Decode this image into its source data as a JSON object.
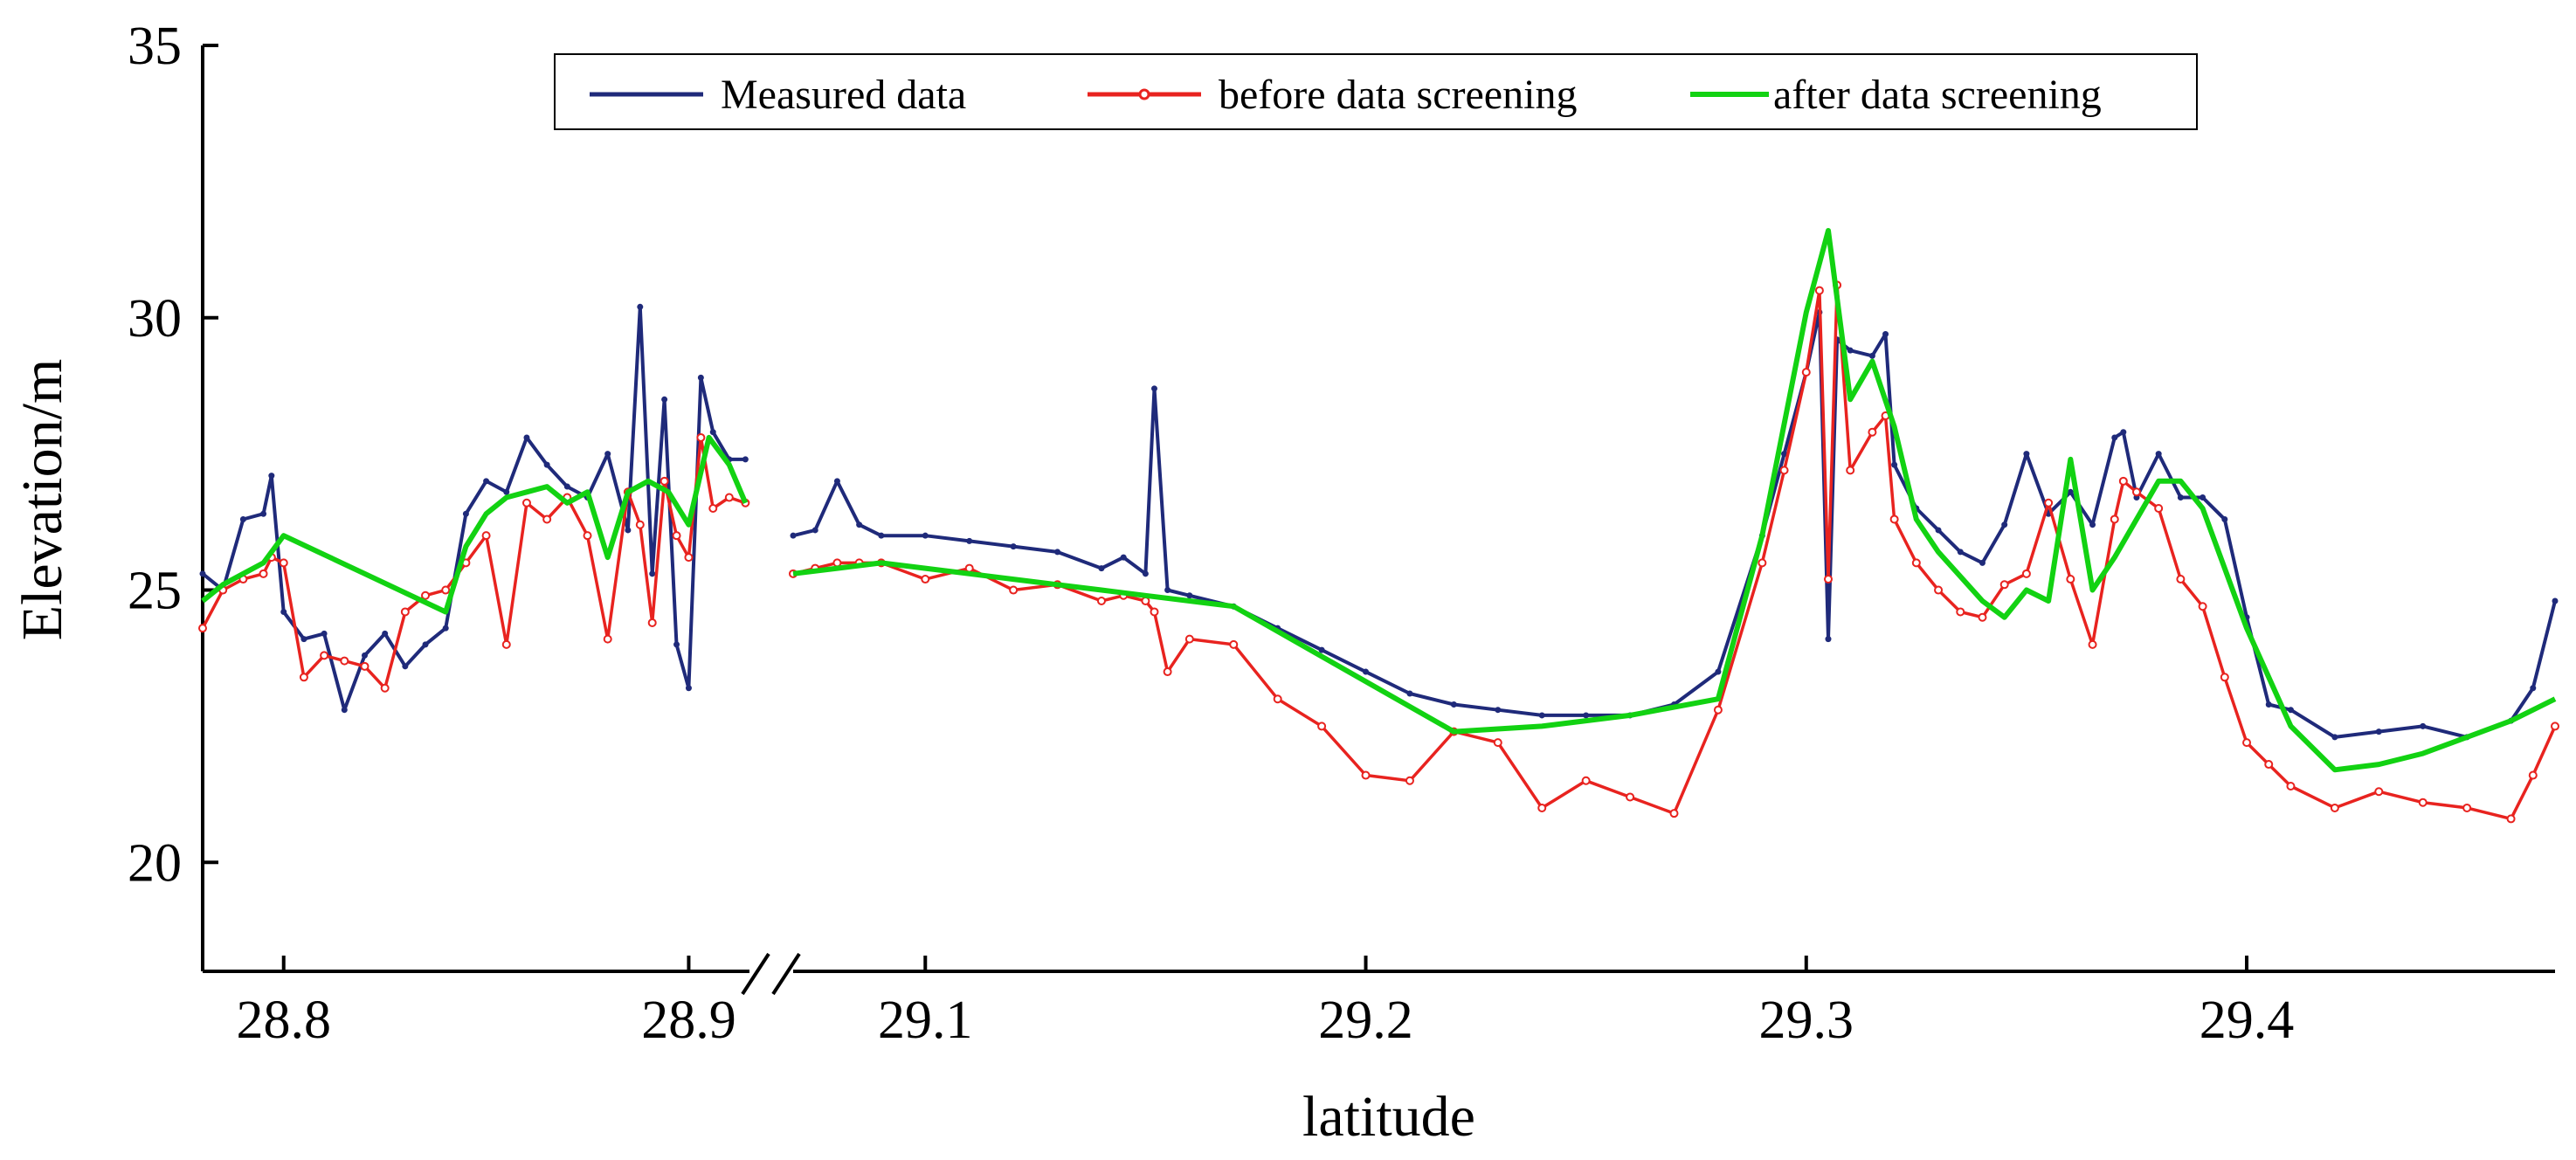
{
  "chart_data": {
    "type": "line",
    "xlabel": "latitude",
    "ylabel": "Elevation/m",
    "ylim": [
      18,
      35
    ],
    "yticks": [
      20,
      25,
      30,
      35
    ],
    "axis_break": "between 28.9 and 29.1",
    "segments": [
      {
        "xlim": [
          28.78,
          28.915
        ],
        "ticks": [
          28.8,
          28.9
        ]
      },
      {
        "xlim": [
          29.07,
          29.47
        ],
        "ticks": [
          29.1,
          29.2,
          29.3,
          29.4
        ]
      }
    ],
    "xtick_labels": [
      "28.8",
      "28.9",
      "29.1",
      "29.2",
      "29.3",
      "29.4"
    ],
    "legend": [
      "Measured data",
      "before data screening",
      "after data screening"
    ],
    "legend_position": "top-right",
    "colors": {
      "measured": "#1f2a7a",
      "before": "#e8231f",
      "after": "#12d212"
    },
    "series": [
      {
        "name": "Measured data",
        "color": "#1f2a7a",
        "x": [
          28.78,
          28.785,
          28.79,
          28.795,
          28.797,
          28.8,
          28.805,
          28.81,
          28.815,
          28.82,
          28.825,
          28.83,
          28.835,
          28.84,
          28.845,
          28.85,
          28.855,
          28.86,
          28.865,
          28.87,
          28.875,
          28.88,
          28.885,
          28.888,
          28.891,
          28.894,
          28.897,
          28.9,
          28.903,
          28.906,
          28.91,
          28.914,
          29.07,
          29.075,
          29.08,
          29.085,
          29.09,
          29.1,
          29.11,
          29.12,
          29.13,
          29.14,
          29.145,
          29.15,
          29.152,
          29.155,
          29.16,
          29.17,
          29.18,
          29.19,
          29.2,
          29.21,
          29.22,
          29.23,
          29.24,
          29.25,
          29.26,
          29.27,
          29.28,
          29.29,
          29.295,
          29.3,
          29.303,
          29.305,
          29.307,
          29.31,
          29.315,
          29.318,
          29.32,
          29.325,
          29.33,
          29.335,
          29.34,
          29.345,
          29.35,
          29.355,
          29.36,
          29.365,
          29.37,
          29.372,
          29.375,
          29.38,
          29.385,
          29.39,
          29.395,
          29.4,
          29.405,
          29.41,
          29.42,
          29.43,
          29.44,
          29.45,
          29.46,
          29.465,
          29.47
        ],
        "y": [
          25.3,
          25.0,
          26.3,
          26.4,
          27.1,
          24.6,
          24.1,
          24.2,
          22.8,
          23.8,
          24.2,
          23.6,
          24.0,
          24.3,
          26.4,
          27.0,
          26.8,
          27.8,
          27.3,
          26.9,
          26.7,
          27.5,
          26.1,
          30.2,
          25.3,
          28.5,
          24.0,
          23.2,
          28.9,
          27.9,
          27.4,
          27.4,
          26.0,
          26.1,
          27.0,
          26.2,
          26.0,
          26.0,
          25.9,
          25.8,
          25.7,
          25.4,
          25.6,
          25.3,
          28.7,
          25.0,
          24.9,
          24.7,
          24.3,
          23.9,
          23.5,
          23.1,
          22.9,
          22.8,
          22.7,
          22.7,
          22.7,
          22.9,
          23.5,
          26.0,
          27.5,
          29.0,
          30.1,
          24.1,
          29.6,
          29.4,
          29.3,
          29.7,
          27.3,
          26.5,
          26.1,
          25.7,
          25.5,
          26.2,
          27.5,
          26.4,
          26.8,
          26.2,
          27.8,
          27.9,
          26.7,
          27.5,
          26.7,
          26.7,
          26.3,
          24.5,
          22.9,
          22.8,
          22.3,
          22.4,
          22.5,
          22.3,
          22.6,
          23.2,
          24.8
        ]
      },
      {
        "name": "before data screening",
        "color": "#e8231f",
        "x": [
          28.78,
          28.785,
          28.79,
          28.795,
          28.797,
          28.8,
          28.805,
          28.81,
          28.815,
          28.82,
          28.825,
          28.83,
          28.835,
          28.84,
          28.845,
          28.85,
          28.855,
          28.86,
          28.865,
          28.87,
          28.875,
          28.88,
          28.885,
          28.888,
          28.891,
          28.894,
          28.897,
          28.9,
          28.903,
          28.906,
          28.91,
          28.914,
          29.07,
          29.075,
          29.08,
          29.085,
          29.09,
          29.1,
          29.11,
          29.12,
          29.13,
          29.14,
          29.145,
          29.15,
          29.152,
          29.155,
          29.16,
          29.17,
          29.18,
          29.19,
          29.2,
          29.21,
          29.22,
          29.23,
          29.24,
          29.25,
          29.26,
          29.27,
          29.28,
          29.29,
          29.295,
          29.3,
          29.303,
          29.305,
          29.307,
          29.31,
          29.315,
          29.318,
          29.32,
          29.325,
          29.33,
          29.335,
          29.34,
          29.345,
          29.35,
          29.355,
          29.36,
          29.365,
          29.37,
          29.372,
          29.375,
          29.38,
          29.385,
          29.39,
          29.395,
          29.4,
          29.405,
          29.41,
          29.42,
          29.43,
          29.44,
          29.45,
          29.46,
          29.465,
          29.47
        ],
        "y": [
          24.3,
          25.0,
          25.2,
          25.3,
          25.6,
          25.5,
          23.4,
          23.8,
          23.7,
          23.6,
          23.2,
          24.6,
          24.9,
          25.0,
          25.5,
          26.0,
          24.0,
          26.6,
          26.3,
          26.7,
          26.0,
          24.1,
          26.8,
          26.2,
          24.4,
          27.0,
          26.0,
          25.6,
          27.8,
          26.5,
          26.7,
          26.6,
          25.3,
          25.4,
          25.5,
          25.5,
          25.5,
          25.2,
          25.4,
          25.0,
          25.1,
          24.8,
          24.9,
          24.8,
          24.6,
          23.5,
          24.1,
          24.0,
          23.0,
          22.5,
          21.6,
          21.5,
          22.4,
          22.2,
          21.0,
          21.5,
          21.2,
          20.9,
          22.8,
          25.5,
          27.2,
          29.0,
          30.5,
          25.2,
          30.6,
          27.2,
          27.9,
          28.2,
          26.3,
          25.5,
          25.0,
          24.6,
          24.5,
          25.1,
          25.3,
          26.6,
          25.2,
          24.0,
          26.3,
          27.0,
          26.8,
          26.5,
          25.2,
          24.7,
          23.4,
          22.2,
          21.8,
          21.4,
          21.0,
          21.3,
          21.1,
          21.0,
          20.8,
          21.6,
          22.5
        ]
      },
      {
        "name": "after data screening",
        "color": "#12d212",
        "x": [
          28.78,
          28.785,
          28.79,
          28.795,
          28.8,
          28.82,
          28.84,
          28.845,
          28.85,
          28.855,
          28.86,
          28.865,
          28.87,
          28.875,
          28.88,
          28.885,
          28.89,
          28.895,
          28.9,
          28.905,
          28.91,
          28.914,
          29.07,
          29.08,
          29.09,
          29.1,
          29.11,
          29.12,
          29.13,
          29.14,
          29.15,
          29.16,
          29.17,
          29.22,
          29.24,
          29.26,
          29.28,
          29.29,
          29.3,
          29.305,
          29.31,
          29.315,
          29.32,
          29.325,
          29.33,
          29.34,
          29.345,
          29.35,
          29.355,
          29.36,
          29.365,
          29.37,
          29.38,
          29.385,
          29.39,
          29.4,
          29.41,
          29.42,
          29.43,
          29.44,
          29.45,
          29.46,
          29.47
        ],
        "y": [
          24.8,
          25.1,
          25.3,
          25.5,
          26.0,
          25.3,
          24.6,
          25.8,
          26.4,
          26.7,
          26.8,
          26.9,
          26.6,
          26.8,
          25.6,
          26.8,
          27.0,
          26.8,
          26.2,
          27.8,
          27.3,
          26.6,
          25.3,
          25.4,
          25.5,
          25.4,
          25.3,
          25.2,
          25.1,
          25.0,
          24.9,
          24.8,
          24.7,
          22.4,
          22.5,
          22.7,
          23.0,
          26.0,
          30.1,
          31.6,
          28.5,
          29.2,
          28.0,
          26.3,
          25.7,
          24.8,
          24.5,
          25.0,
          24.8,
          27.4,
          25.0,
          25.6,
          27.0,
          27.0,
          26.5,
          24.3,
          22.5,
          21.7,
          21.8,
          22.0,
          22.3,
          22.6,
          23.0
        ]
      }
    ]
  }
}
